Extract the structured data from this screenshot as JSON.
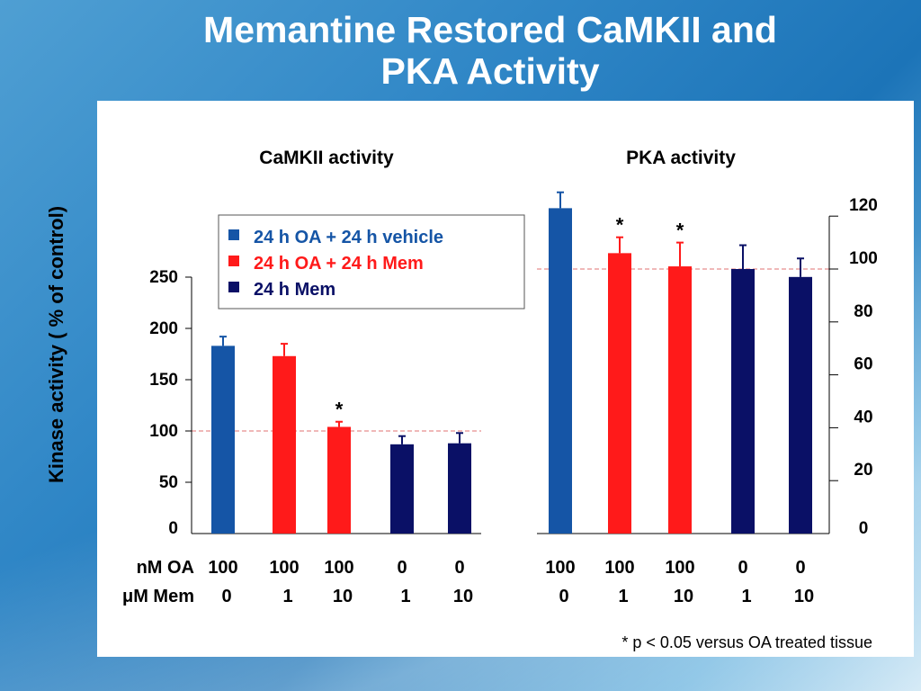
{
  "slide": {
    "title_line1": "Memantine Restored CaMKII and",
    "title_line2": "PKA Activity",
    "ylabel": "Kinase activity ( % of control)",
    "footnote": "* p < 0.05 versus OA treated tissue"
  },
  "legend": {
    "position": "top-center",
    "items": [
      {
        "label": "24 h OA + 24 h vehicle",
        "color": "#1555a6"
      },
      {
        "label": "24 h OA + 24 h Mem",
        "color": "#ff1a1a"
      },
      {
        "label": "24 h Mem",
        "color": "#0a1066"
      }
    ]
  },
  "row_labels": {
    "oa": "nM OA",
    "mem": "μM Mem"
  },
  "chart_data": [
    {
      "type": "bar",
      "title": "CaMKII activity",
      "ylim": [
        0,
        250
      ],
      "yticks": [
        "0",
        "50",
        "100",
        "150",
        "200",
        "250"
      ],
      "reference_line": 100,
      "categories_oa": [
        "100",
        "100",
        "100",
        "0",
        "0"
      ],
      "categories_mem": [
        "0",
        "1",
        "10",
        "1",
        "10"
      ],
      "values": [
        183,
        173,
        104,
        87,
        88
      ],
      "errors": [
        9,
        12,
        5,
        8,
        10
      ],
      "colors": [
        "#1555a6",
        "#ff1a1a",
        "#ff1a1a",
        "#0a1066",
        "#0a1066"
      ],
      "significant": [
        false,
        false,
        true,
        false,
        false
      ],
      "marker": "*"
    },
    {
      "type": "bar",
      "title": "PKA activity",
      "ylim": [
        0,
        120
      ],
      "yticks": [
        "0",
        "20",
        "40",
        "60",
        "80",
        "100",
        "120"
      ],
      "reference_line": 100,
      "categories_oa": [
        "100",
        "100",
        "100",
        "0",
        "0"
      ],
      "categories_mem": [
        "0",
        "1",
        "10",
        "1",
        "10"
      ],
      "values": [
        123,
        106,
        101,
        100,
        97
      ],
      "errors": [
        6,
        6,
        9,
        9,
        7
      ],
      "colors": [
        "#1555a6",
        "#ff1a1a",
        "#ff1a1a",
        "#0a1066",
        "#0a1066"
      ],
      "significant": [
        false,
        true,
        true,
        false,
        false
      ],
      "marker": "*"
    }
  ]
}
